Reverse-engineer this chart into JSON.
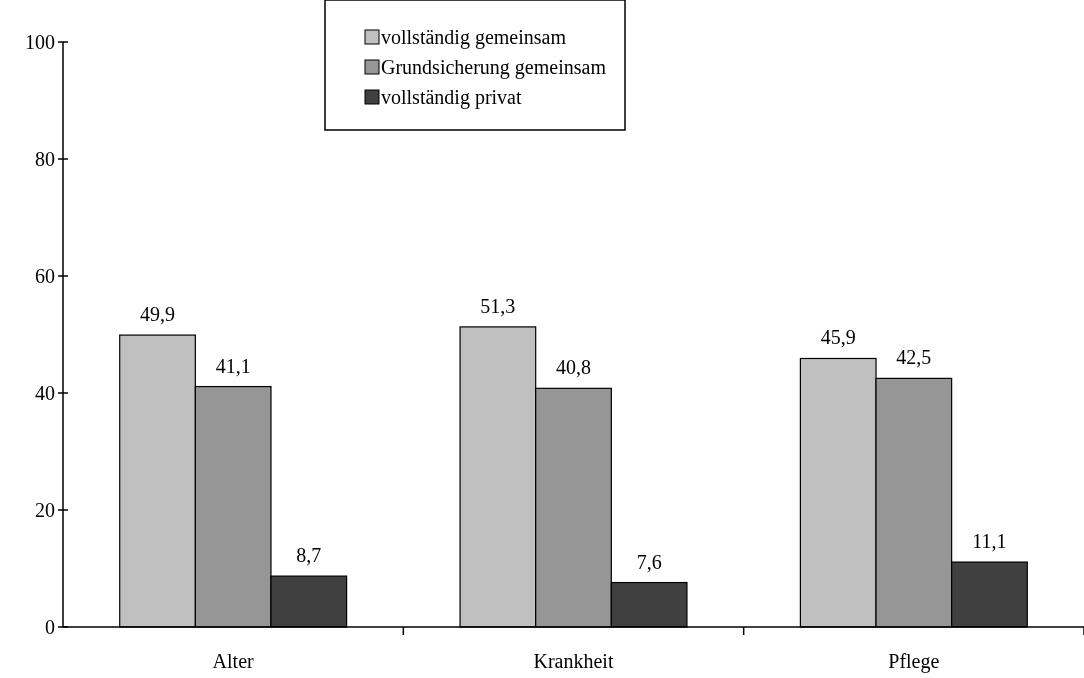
{
  "chart_data": {
    "type": "bar",
    "categories": [
      "Alter",
      "Krankheit",
      "Pflege"
    ],
    "series": [
      {
        "name": "vollständig gemeinsam",
        "color": "#c0c0c0",
        "values": [
          49.9,
          51.3,
          45.9
        ],
        "value_labels": [
          "49,9",
          "51,3",
          "45,9"
        ]
      },
      {
        "name": "Grundsicherung gemeinsam",
        "color": "#969696",
        "values": [
          41.1,
          40.8,
          42.5
        ],
        "value_labels": [
          "41,1",
          "40,8",
          "42,5"
        ]
      },
      {
        "name": "vollständig privat",
        "color": "#404040",
        "values": [
          8.7,
          7.6,
          11.1
        ],
        "value_labels": [
          "8,7",
          "7,6",
          "11,1"
        ]
      }
    ],
    "ylim": [
      0,
      100
    ],
    "yticks": [
      0,
      20,
      40,
      60,
      80,
      100
    ],
    "legend": "top",
    "grid": false
  }
}
